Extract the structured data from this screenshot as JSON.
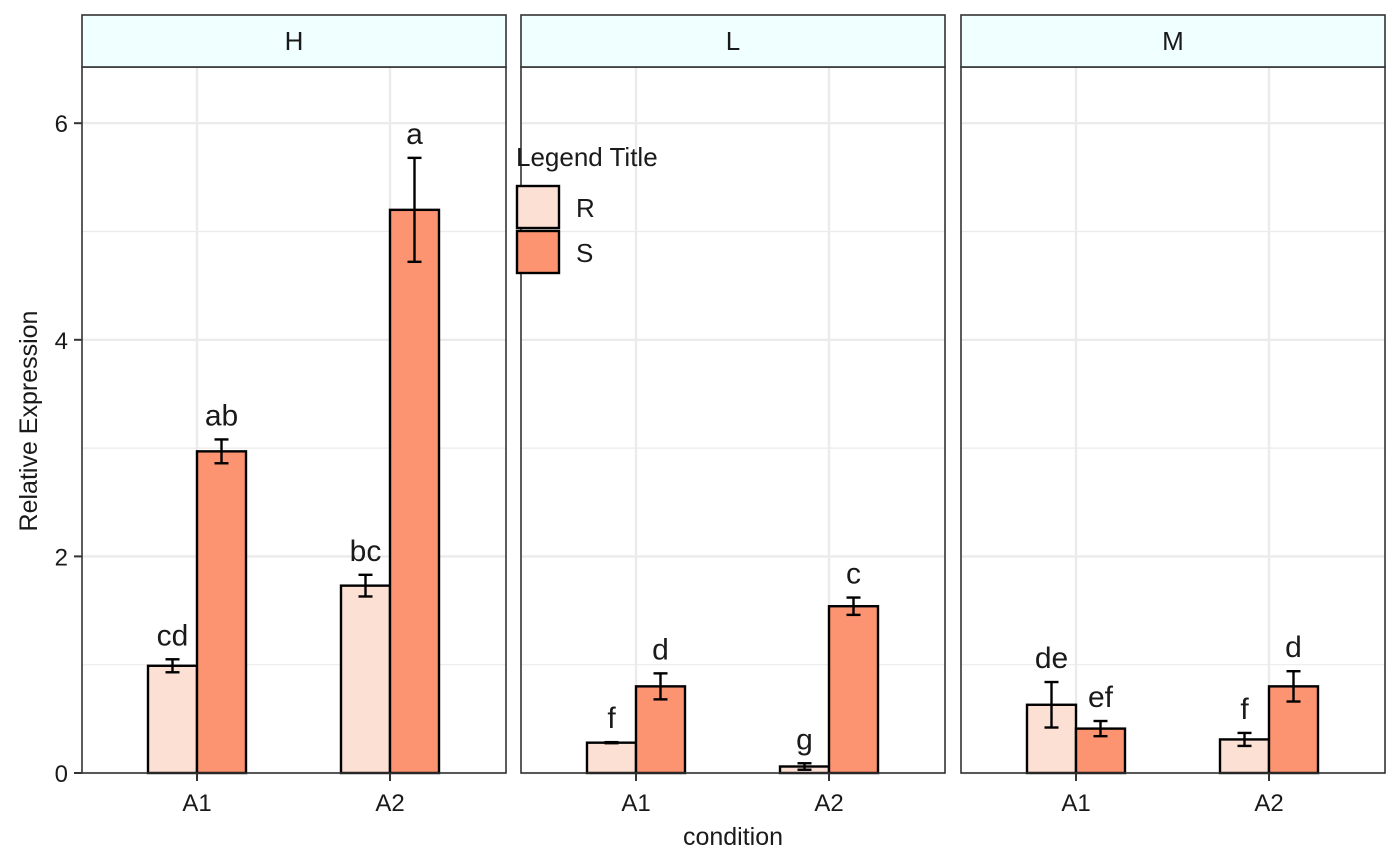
{
  "chart_data": {
    "type": "bar",
    "xlabel": "condition",
    "ylabel": "Relative Expression",
    "ylim": [
      0,
      6.5
    ],
    "y_ticks": [
      "0",
      "2",
      "4",
      "6"
    ],
    "y_tick_values": [
      0,
      2,
      4,
      6
    ],
    "grid": true,
    "legend": {
      "title": "Legend Title",
      "placement": "inside-top-left of middle panel",
      "entries": [
        {
          "name": "R",
          "color": "#FCE0D4"
        },
        {
          "name": "S",
          "color": "#FC9371"
        }
      ]
    },
    "colors": {
      "strip_fill": "#F0FFFF",
      "R": "#FCE0D4",
      "S": "#FC9371"
    },
    "categories": [
      "A1",
      "A2"
    ],
    "panels": [
      {
        "name": "H",
        "series": [
          {
            "name": "R",
            "values": [
              0.99,
              1.73
            ],
            "errors": [
              0.06,
              0.1
            ],
            "labels": [
              "cd",
              "bc"
            ]
          },
          {
            "name": "S",
            "values": [
              2.97,
              5.2
            ],
            "errors": [
              0.11,
              0.48
            ],
            "labels": [
              "ab",
              "a"
            ]
          }
        ]
      },
      {
        "name": "L",
        "series": [
          {
            "name": "R",
            "values": [
              0.28,
              0.06
            ],
            "errors": [
              0.005,
              0.03
            ],
            "labels": [
              "f",
              "g"
            ]
          },
          {
            "name": "S",
            "values": [
              0.8,
              1.54
            ],
            "errors": [
              0.12,
              0.08
            ],
            "labels": [
              "d",
              "c"
            ]
          }
        ]
      },
      {
        "name": "M",
        "series": [
          {
            "name": "R",
            "values": [
              0.63,
              0.31
            ],
            "errors": [
              0.21,
              0.06
            ],
            "labels": [
              "de",
              "f"
            ]
          },
          {
            "name": "S",
            "values": [
              0.41,
              0.8
            ],
            "errors": [
              0.07,
              0.14
            ],
            "labels": [
              "ef",
              "d"
            ]
          }
        ]
      }
    ]
  }
}
